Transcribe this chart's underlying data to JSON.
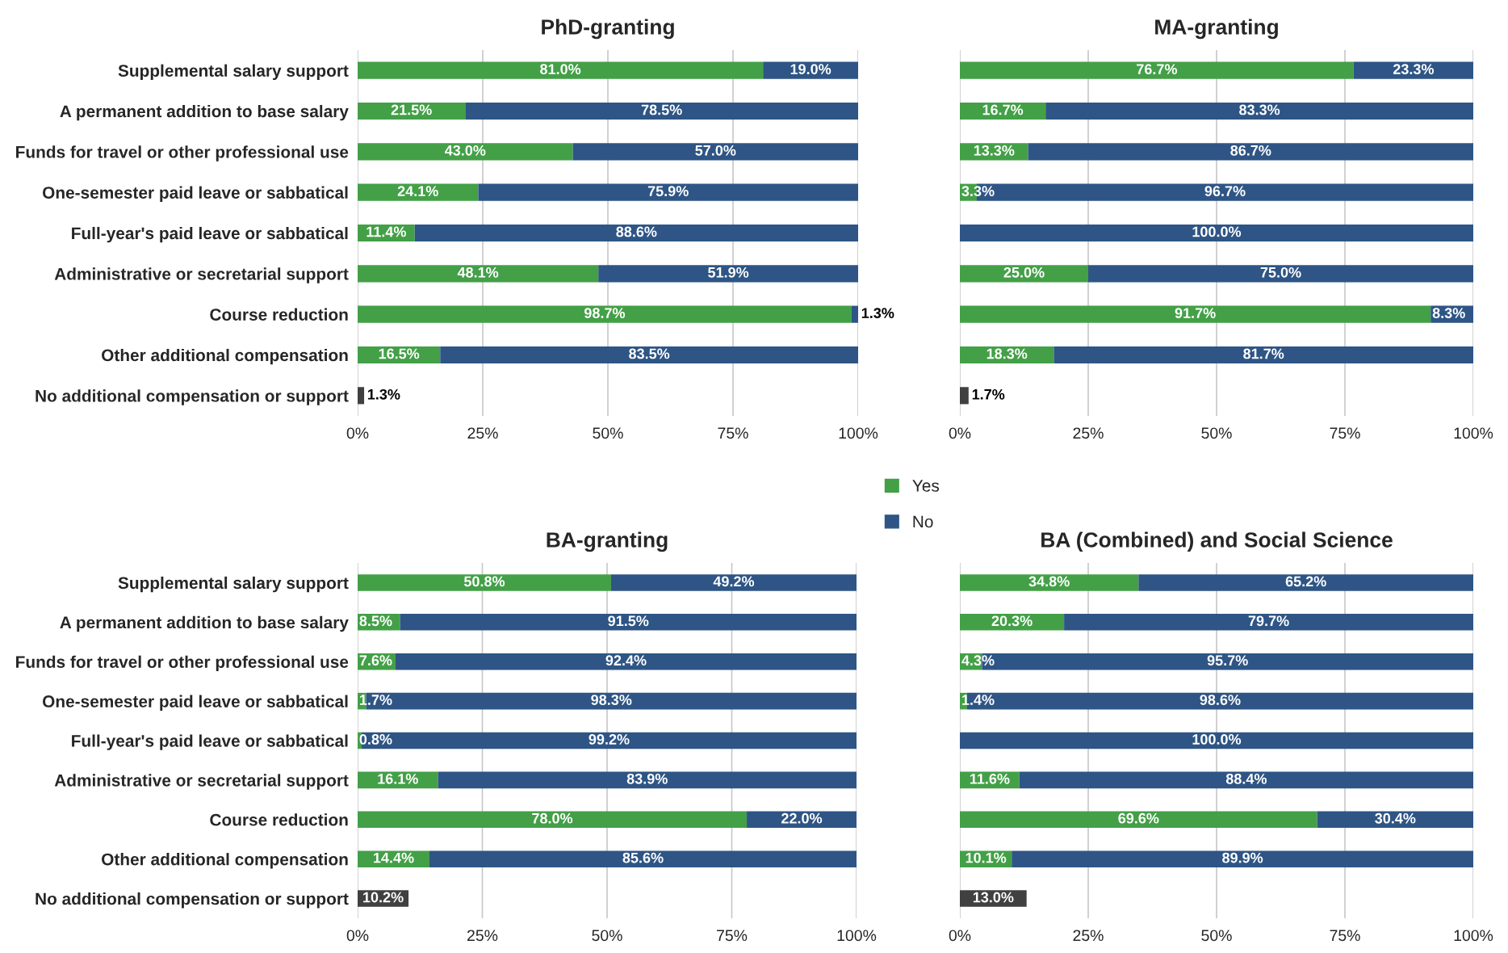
{
  "chart_data": [
    {
      "type": "bar",
      "orientation": "horizontal",
      "stacked": true,
      "title": "PhD-granting",
      "grid": "x",
      "legend": "bottom",
      "categories": [
        "Supplemental salary support",
        "A permanent addition to base salary",
        "Funds for travel or other professional use",
        "One-semester paid leave or sabbatical",
        "Full-year's paid leave or sabbatical",
        "Administrative or secretarial support",
        "Course reduction",
        "Other additional compensation",
        "No additional compensation or support"
      ],
      "xlim": [
        0,
        100
      ],
      "xticks": [
        {
          "value": 0,
          "label": "0%"
        },
        {
          "value": 25,
          "label": "25%"
        },
        {
          "value": 50,
          "label": "50%"
        },
        {
          "value": 75,
          "label": "75%"
        },
        {
          "value": 100,
          "label": "100%"
        }
      ],
      "series": [
        {
          "name": "Yes",
          "color": "#43a047",
          "values": [
            81.0,
            21.5,
            43.0,
            24.1,
            11.4,
            48.1,
            98.7,
            16.5,
            null
          ],
          "value_labels": [
            "81.0%",
            "21.5%",
            "43.0%",
            "24.1%",
            "11.4%",
            "48.1%",
            "98.7%",
            "16.5%",
            null
          ]
        },
        {
          "name": "No",
          "color": "#2e5585",
          "values": [
            19.0,
            78.5,
            57.0,
            75.9,
            88.6,
            51.9,
            1.3,
            83.5,
            null
          ],
          "value_labels": [
            "19.0%",
            "78.5%",
            "57.0%",
            "75.9%",
            "88.6%",
            "51.9%",
            "1.3%",
            "83.5%",
            null
          ]
        },
        {
          "color": "#404040",
          "values": [
            null,
            null,
            null,
            null,
            null,
            null,
            null,
            null,
            1.3
          ],
          "value_labels": [
            null,
            null,
            null,
            null,
            null,
            null,
            null,
            null,
            "1.3%"
          ]
        }
      ]
    },
    {
      "type": "bar",
      "orientation": "horizontal",
      "stacked": true,
      "title": "MA-granting",
      "grid": "x",
      "tick_labels": "x",
      "categories": [
        null,
        null,
        null,
        null,
        null,
        null,
        null,
        null,
        null
      ],
      "xlim": [
        0,
        100
      ],
      "xticks": [
        {
          "value": 0,
          "label": "0%"
        },
        {
          "value": 25,
          "label": "25%"
        },
        {
          "value": 50,
          "label": "50%"
        },
        {
          "value": 75,
          "label": "75%"
        },
        {
          "value": 100,
          "label": "100%"
        }
      ],
      "series": [
        {
          "color": "#43a047",
          "values": [
            76.7,
            16.7,
            13.3,
            3.3,
            0,
            25.0,
            91.7,
            18.3,
            null
          ],
          "value_labels": [
            "76.7%",
            "16.7%",
            "13.3%",
            "3.3%",
            null,
            "25.0%",
            "91.7%",
            "18.3%",
            null
          ]
        },
        {
          "color": "#2e5585",
          "values": [
            23.3,
            83.3,
            86.7,
            96.7,
            100.0,
            75.0,
            8.3,
            81.7,
            null
          ],
          "value_labels": [
            "23.3%",
            "83.3%",
            "86.7%",
            "96.7%",
            "100.0%",
            "75.0%",
            "8.3%",
            "81.7%",
            null
          ]
        },
        {
          "color": "#404040",
          "values": [
            null,
            null,
            null,
            null,
            null,
            null,
            null,
            null,
            1.7
          ],
          "value_labels": [
            null,
            null,
            null,
            null,
            null,
            null,
            null,
            null,
            "1.7%"
          ]
        }
      ]
    },
    {
      "type": "bar",
      "orientation": "horizontal",
      "stacked": true,
      "title": "BA-granting",
      "grid": "x",
      "categories": [
        "Supplemental salary support",
        "A permanent addition to base salary",
        "Funds for travel or other professional use",
        "One-semester paid leave or sabbatical",
        "Full-year's paid leave or sabbatical",
        "Administrative or secretarial support",
        "Course reduction",
        "Other additional compensation",
        "No additional compensation or support"
      ],
      "xlim": [
        0,
        100
      ],
      "xticks": [
        {
          "value": 0,
          "label": "0%"
        },
        {
          "value": 25,
          "label": "25%"
        },
        {
          "value": 50,
          "label": "50%"
        },
        {
          "value": 75,
          "label": "75%"
        },
        {
          "value": 100,
          "label": "100%"
        }
      ],
      "series": [
        {
          "color": "#43a047",
          "values": [
            50.8,
            8.5,
            7.6,
            1.7,
            0.8,
            16.1,
            78.0,
            14.4,
            null
          ],
          "value_labels": [
            "50.8%",
            "8.5%",
            "7.6%",
            "1.7%",
            "0.8%",
            "16.1%",
            "78.0%",
            "14.4%",
            null
          ]
        },
        {
          "color": "#2e5585",
          "values": [
            49.2,
            91.5,
            92.4,
            98.3,
            99.2,
            83.9,
            22.0,
            85.6,
            null
          ],
          "value_labels": [
            "49.2%",
            "91.5%",
            "92.4%",
            "98.3%",
            "99.2%",
            "83.9%",
            "22.0%",
            "85.6%",
            null
          ]
        },
        {
          "color": "#404040",
          "values": [
            null,
            null,
            null,
            null,
            null,
            null,
            null,
            null,
            10.2
          ],
          "value_labels": [
            null,
            null,
            null,
            null,
            null,
            null,
            null,
            null,
            "10.2%"
          ]
        }
      ]
    },
    {
      "type": "bar",
      "orientation": "horizontal",
      "stacked": true,
      "title": "BA (Combined) and Social Science",
      "grid": "x",
      "tick_labels": "x",
      "categories": [
        null,
        null,
        null,
        null,
        null,
        null,
        null,
        null,
        null
      ],
      "xlim": [
        0,
        100
      ],
      "xticks": [
        {
          "value": 0,
          "label": "0%"
        },
        {
          "value": 25,
          "label": "25%"
        },
        {
          "value": 50,
          "label": "50%"
        },
        {
          "value": 75,
          "label": "75%"
        },
        {
          "value": 100,
          "label": "100%"
        }
      ],
      "series": [
        {
          "color": "#43a047",
          "values": [
            34.8,
            20.3,
            4.3,
            1.4,
            0,
            11.6,
            69.6,
            10.1,
            null
          ],
          "value_labels": [
            "34.8%",
            "20.3%",
            "4.3%",
            "1.4%",
            null,
            "11.6%",
            "69.6%",
            "10.1%",
            null
          ]
        },
        {
          "color": "#2e5585",
          "values": [
            65.2,
            79.7,
            95.7,
            98.6,
            100.0,
            88.4,
            30.4,
            89.9,
            null
          ],
          "value_labels": [
            "65.2%",
            "79.7%",
            "95.7%",
            "98.6%",
            "100.0%",
            "88.4%",
            "30.4%",
            "89.9%",
            null
          ]
        },
        {
          "color": "#404040",
          "values": [
            null,
            null,
            null,
            null,
            null,
            null,
            null,
            null,
            13.0
          ],
          "value_labels": [
            null,
            null,
            null,
            null,
            null,
            null,
            null,
            null,
            "13.0%"
          ]
        }
      ]
    }
  ]
}
